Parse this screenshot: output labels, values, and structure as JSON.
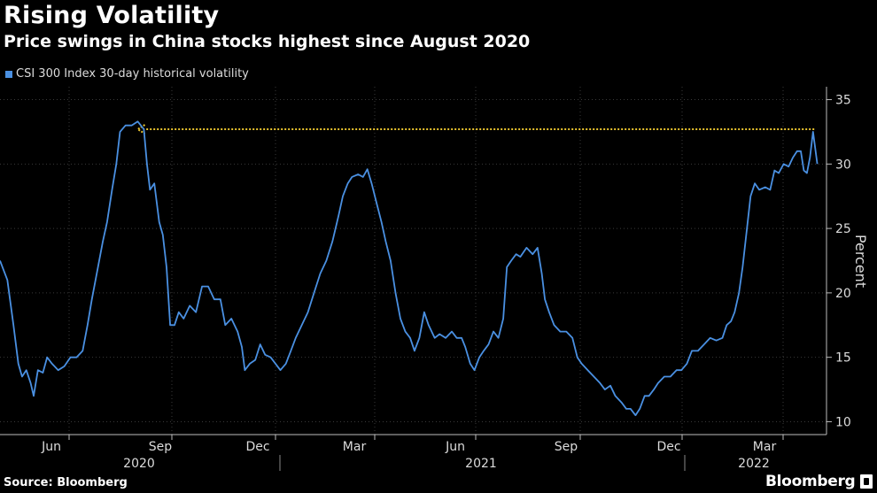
{
  "header": {
    "title": "Rising Volatility",
    "subtitle": "Price swings in China stocks highest since August 2020"
  },
  "footer": {
    "source": "Source: Bloomberg",
    "brand": "Bloomberg"
  },
  "colors": {
    "background": "#000000",
    "series": "#4a90e2",
    "annotation": "#e8c32e",
    "grid": "#3a3a3a",
    "text": "#dcdcdc"
  },
  "chart_data": {
    "type": "line",
    "title": "Rising Volatility",
    "subtitle": "Price swings in China stocks highest since August 2020",
    "xlabel": "",
    "ylabel": "Percent",
    "ylim": [
      9,
      36
    ],
    "y_ticks": [
      10,
      15,
      20,
      25,
      30,
      35
    ],
    "grid": "horizontal dotted",
    "legend": "top-left",
    "month_ticks": [
      "Jun",
      "Sep",
      "Dec",
      "Mar",
      "Jun",
      "Sep",
      "Dec",
      "Mar"
    ],
    "year_labels": [
      "2020",
      "2021",
      "2022"
    ],
    "series": [
      {
        "name": "CSI 300 Index 30-day historical volatility",
        "color": "#4a90e2",
        "points": [
          [
            0.0,
            22.5
          ],
          [
            1.2,
            21.0
          ],
          [
            2.2,
            17.5
          ],
          [
            3.0,
            14.5
          ],
          [
            3.6,
            13.5
          ],
          [
            4.3,
            14.0
          ],
          [
            5.0,
            13.0
          ],
          [
            5.5,
            12.0
          ],
          [
            6.2,
            14.0
          ],
          [
            7.0,
            13.8
          ],
          [
            7.7,
            15.0
          ],
          [
            8.5,
            14.5
          ],
          [
            9.5,
            14.0
          ],
          [
            10.5,
            14.3
          ],
          [
            11.5,
            15.0
          ],
          [
            12.5,
            15.0
          ],
          [
            13.5,
            15.5
          ],
          [
            14.3,
            17.5
          ],
          [
            15.0,
            19.5
          ],
          [
            16.0,
            22.0
          ],
          [
            16.8,
            24.0
          ],
          [
            17.5,
            25.5
          ],
          [
            18.3,
            28.0
          ],
          [
            19.0,
            30.0
          ],
          [
            19.6,
            32.5
          ],
          [
            20.5,
            33.0
          ],
          [
            21.5,
            33.0
          ],
          [
            22.5,
            33.3
          ],
          [
            23.5,
            32.7
          ],
          [
            24.0,
            30.0
          ],
          [
            24.5,
            28.0
          ],
          [
            25.2,
            28.5
          ],
          [
            26.0,
            25.5
          ],
          [
            26.6,
            24.5
          ],
          [
            27.2,
            22.0
          ],
          [
            27.8,
            17.5
          ],
          [
            28.5,
            17.5
          ],
          [
            29.2,
            18.5
          ],
          [
            30.0,
            18.0
          ],
          [
            31.0,
            19.0
          ],
          [
            32.0,
            18.5
          ],
          [
            33.0,
            20.5
          ],
          [
            34.0,
            20.5
          ],
          [
            35.0,
            19.5
          ],
          [
            36.0,
            19.5
          ],
          [
            36.8,
            17.5
          ],
          [
            37.8,
            18.0
          ],
          [
            38.8,
            17.0
          ],
          [
            39.5,
            15.8
          ],
          [
            40.0,
            14.0
          ],
          [
            40.8,
            14.5
          ],
          [
            41.7,
            14.8
          ],
          [
            42.5,
            16.0
          ],
          [
            43.3,
            15.2
          ],
          [
            44.2,
            15.0
          ],
          [
            45.0,
            14.5
          ],
          [
            45.8,
            14.0
          ],
          [
            46.7,
            14.5
          ],
          [
            47.5,
            15.5
          ],
          [
            48.3,
            16.5
          ],
          [
            49.3,
            17.5
          ],
          [
            50.3,
            18.5
          ],
          [
            51.3,
            20.0
          ],
          [
            52.3,
            21.5
          ],
          [
            53.3,
            22.5
          ],
          [
            54.3,
            24.0
          ],
          [
            55.3,
            26.0
          ],
          [
            56.0,
            27.5
          ],
          [
            56.8,
            28.5
          ],
          [
            57.5,
            29.0
          ],
          [
            58.5,
            29.2
          ],
          [
            59.3,
            29.0
          ],
          [
            60.0,
            29.6
          ],
          [
            60.7,
            28.5
          ],
          [
            61.5,
            27.0
          ],
          [
            62.3,
            25.5
          ],
          [
            63.0,
            24.0
          ],
          [
            63.8,
            22.5
          ],
          [
            64.6,
            20.0
          ],
          [
            65.4,
            18.0
          ],
          [
            66.2,
            17.0
          ],
          [
            67.0,
            16.5
          ],
          [
            67.7,
            15.5
          ],
          [
            68.5,
            16.5
          ],
          [
            69.3,
            18.5
          ],
          [
            70.0,
            17.5
          ],
          [
            71.0,
            16.5
          ],
          [
            71.8,
            16.8
          ],
          [
            72.8,
            16.5
          ],
          [
            73.8,
            17.0
          ],
          [
            74.6,
            16.5
          ],
          [
            75.4,
            16.5
          ],
          [
            76.0,
            15.8
          ],
          [
            76.8,
            14.5
          ],
          [
            77.5,
            14.0
          ],
          [
            78.3,
            15.0
          ],
          [
            79.0,
            15.5
          ],
          [
            79.8,
            16.0
          ],
          [
            80.6,
            17.0
          ],
          [
            81.4,
            16.5
          ],
          [
            82.2,
            18.0
          ],
          [
            82.8,
            22.0
          ],
          [
            83.5,
            22.5
          ],
          [
            84.3,
            23.0
          ],
          [
            85.0,
            22.8
          ],
          [
            86.0,
            23.5
          ],
          [
            87.0,
            23.0
          ],
          [
            87.8,
            23.5
          ],
          [
            88.5,
            21.5
          ],
          [
            89.0,
            19.5
          ],
          [
            89.7,
            18.5
          ],
          [
            90.5,
            17.5
          ],
          [
            91.5,
            17.0
          ],
          [
            92.5,
            17.0
          ],
          [
            93.5,
            16.5
          ],
          [
            94.3,
            15.0
          ],
          [
            95.0,
            14.5
          ],
          [
            96.0,
            14.0
          ],
          [
            97.0,
            13.5
          ],
          [
            98.0,
            13.0
          ],
          [
            98.8,
            12.5
          ],
          [
            99.7,
            12.8
          ],
          [
            100.5,
            12.0
          ],
          [
            101.5,
            11.5
          ],
          [
            102.3,
            11.0
          ],
          [
            103.0,
            11.0
          ],
          [
            103.8,
            10.5
          ],
          [
            104.5,
            11.0
          ],
          [
            105.3,
            12.0
          ],
          [
            106.0,
            12.0
          ],
          [
            106.8,
            12.5
          ],
          [
            107.5,
            13.0
          ],
          [
            108.5,
            13.5
          ],
          [
            109.5,
            13.5
          ],
          [
            110.5,
            14.0
          ],
          [
            111.3,
            14.0
          ],
          [
            112.2,
            14.5
          ],
          [
            113.0,
            15.5
          ],
          [
            114.0,
            15.5
          ],
          [
            115.0,
            16.0
          ],
          [
            116.0,
            16.5
          ],
          [
            117.0,
            16.3
          ],
          [
            118.0,
            16.5
          ],
          [
            118.7,
            17.5
          ],
          [
            119.4,
            17.8
          ],
          [
            120.0,
            18.5
          ],
          [
            120.7,
            20.0
          ],
          [
            121.3,
            22.0
          ],
          [
            122.0,
            25.0
          ],
          [
            122.6,
            27.5
          ],
          [
            123.3,
            28.5
          ],
          [
            124.0,
            28.0
          ],
          [
            125.0,
            28.2
          ],
          [
            125.8,
            28.0
          ],
          [
            126.5,
            29.5
          ],
          [
            127.2,
            29.3
          ],
          [
            128.0,
            30.0
          ],
          [
            128.8,
            29.8
          ],
          [
            129.5,
            30.5
          ],
          [
            130.2,
            31.0
          ],
          [
            130.8,
            31.0
          ],
          [
            131.3,
            29.5
          ],
          [
            131.8,
            29.3
          ],
          [
            132.3,
            30.5
          ],
          [
            132.8,
            32.5
          ],
          [
            133.5,
            30.0
          ]
        ]
      }
    ],
    "annotation": {
      "type": "arrow",
      "from": [
        133.0,
        32.7
      ],
      "to": [
        22.5,
        32.7
      ],
      "color": "#e8c32e",
      "style": "dotted"
    }
  }
}
